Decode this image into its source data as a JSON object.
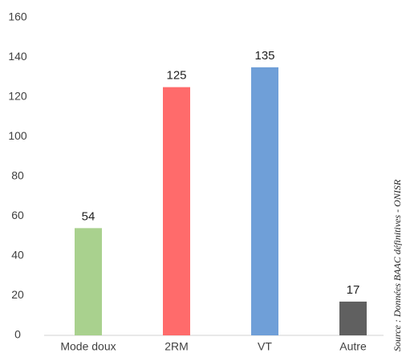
{
  "chart_data": {
    "type": "bar",
    "categories": [
      "Mode doux",
      "2RM",
      "VT",
      "Autre"
    ],
    "values": [
      54,
      125,
      135,
      17
    ],
    "colors": [
      "#a9d18e",
      "#ff6b6b",
      "#6f9fd8",
      "#606060"
    ],
    "ylim": [
      0,
      160
    ],
    "yticks": [
      0,
      20,
      40,
      60,
      80,
      100,
      120,
      140,
      160
    ],
    "grid": false,
    "source": "Source : Données BAAC définitives - ONISR"
  }
}
